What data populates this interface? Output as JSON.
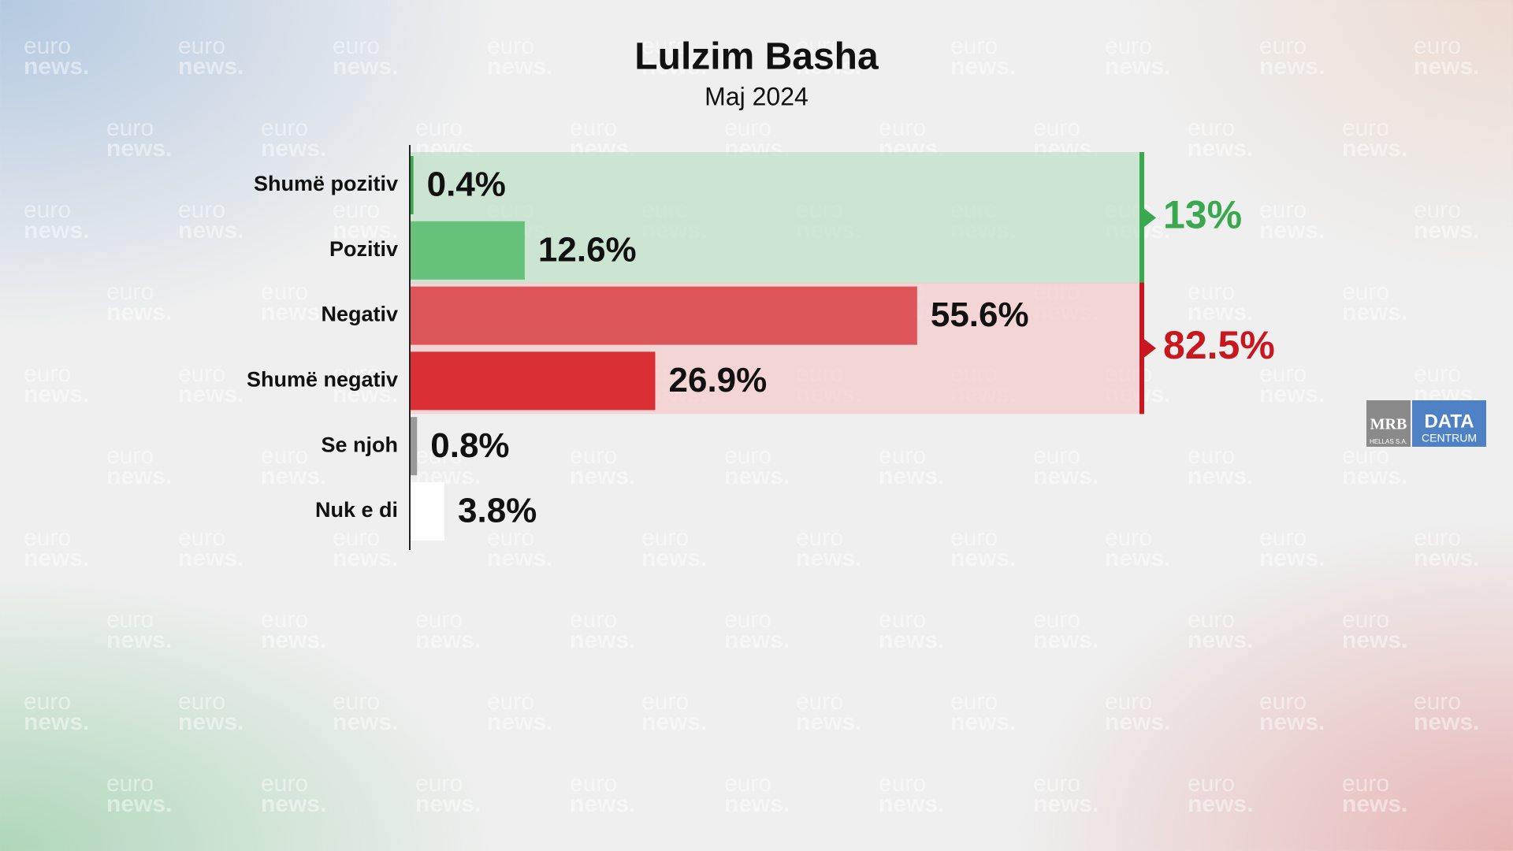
{
  "chart_data": {
    "type": "bar",
    "orientation": "horizontal",
    "title": "Lulzim Basha",
    "subtitle": "Maj 2024",
    "categories": [
      "Shumë pozitiv",
      "Pozitiv",
      "Negativ",
      "Shumë negativ",
      "Se njoh",
      "Nuk e di"
    ],
    "values": [
      0.4,
      12.6,
      55.6,
      26.9,
      0.8,
      3.8
    ],
    "value_labels": [
      "0.4%",
      "12.6%",
      "55.6%",
      "26.9%",
      "0.8%",
      "3.8%"
    ],
    "colors": [
      "#3aa84e",
      "#66c17a",
      "#dc5558",
      "#d92f35",
      "#9a9a9a",
      "#ffffff"
    ],
    "xlim": [
      0,
      100
    ],
    "groups": [
      {
        "members": [
          "Shumë pozitiv",
          "Pozitiv"
        ],
        "value": 13,
        "label": "13%",
        "color": "#3aa84e",
        "band_color": "rgba(180,222,190,0.6)"
      },
      {
        "members": [
          "Negativ",
          "Shumë negativ"
        ],
        "value": 82.5,
        "label": "82.5%",
        "color": "#c8171e",
        "band_color": "rgba(245,195,197,0.6)"
      }
    ]
  },
  "watermark": {
    "top": "euro",
    "bottom": "news."
  },
  "logo": {
    "left": "MRB",
    "left_sub": "HELLAS S.A.",
    "right": "DATA",
    "right_sub": "CENTRUM"
  }
}
